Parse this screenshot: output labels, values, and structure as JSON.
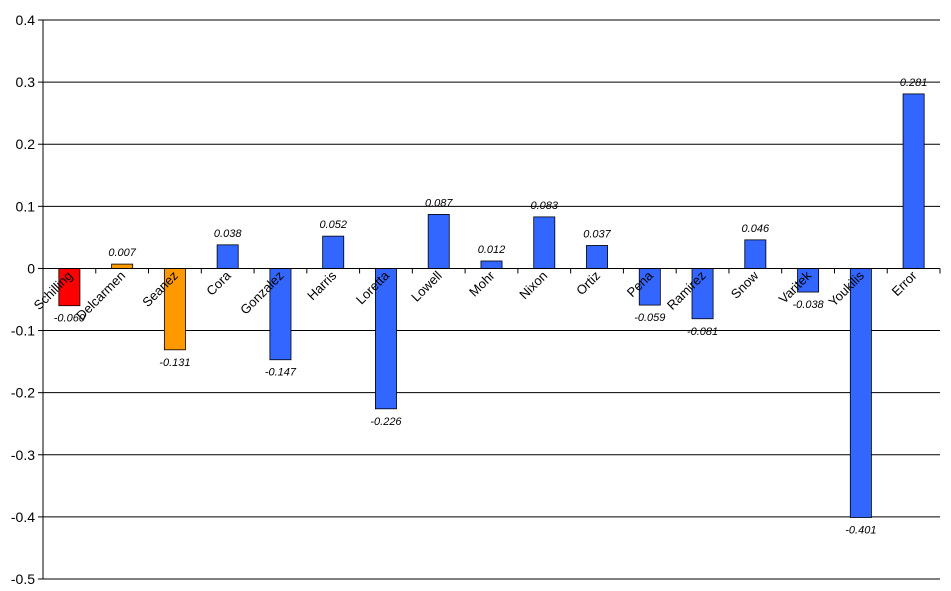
{
  "chart_data": {
    "type": "bar",
    "title": "",
    "xlabel": "",
    "ylabel": "",
    "ylim": [
      -0.5,
      0.4
    ],
    "yticks": [
      0.4,
      0.3,
      0.2,
      0.1,
      0,
      -0.1,
      -0.2,
      -0.3,
      -0.4,
      -0.5
    ],
    "ytick_labels": [
      "0.4",
      "0.3",
      "0.2",
      "0.1",
      "0",
      "-0.1",
      "-0.2",
      "-0.3",
      "-0.4",
      "-0.5"
    ],
    "grid": true,
    "legend": "none",
    "categories": [
      "Schilling",
      "Delcarmen",
      "Seanez",
      "Cora",
      "Gonzalez",
      "Harris",
      "Loretta",
      "Lowell",
      "Mohr",
      "Nixon",
      "Ortiz",
      "Pena",
      "Ramirez",
      "Snow",
      "Varitek",
      "Youkilis",
      "Error"
    ],
    "values": [
      -0.06,
      0.007,
      -0.131,
      0.038,
      -0.147,
      0.052,
      -0.226,
      0.087,
      0.012,
      0.083,
      0.037,
      -0.059,
      -0.081,
      0.046,
      -0.038,
      -0.401,
      0.281
    ],
    "data_labels": [
      "-0.060",
      "0.007",
      "-0.131",
      "0.038",
      "-0.147",
      "0.052",
      "-0.226",
      "0.087",
      "0.012",
      "0.083",
      "0.037",
      "-0.059",
      "-0.081",
      "0.046",
      "-0.038",
      "-0.401",
      "0.281"
    ],
    "colors": [
      "#ff0000",
      "#ff9900",
      "#ff9900",
      "#3366ff",
      "#3366ff",
      "#3366ff",
      "#3366ff",
      "#3366ff",
      "#3366ff",
      "#3366ff",
      "#3366ff",
      "#3366ff",
      "#3366ff",
      "#3366ff",
      "#3366ff",
      "#3366ff",
      "#3366ff"
    ]
  }
}
